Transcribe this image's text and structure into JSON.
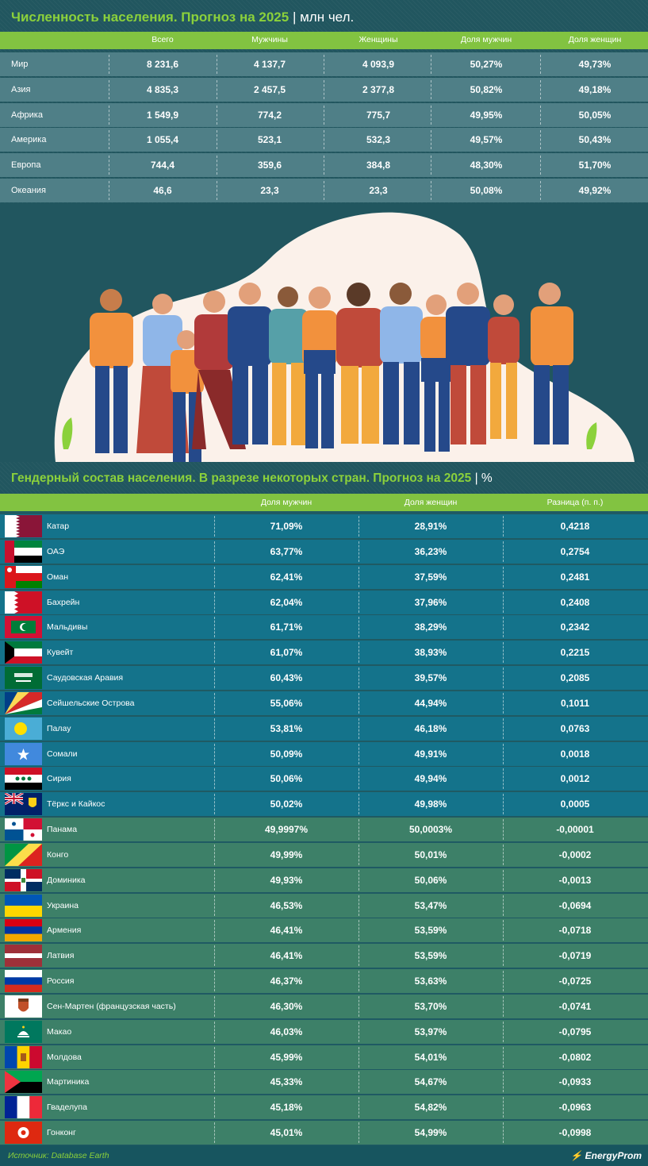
{
  "title1": {
    "main": "Численность населения. Прогноз на 2025",
    "sep": "|",
    "unit": "млн чел."
  },
  "table1": {
    "headers": [
      "Всего",
      "Мужчины",
      "Женщины",
      "Доля мужчин",
      "Доля женщин"
    ],
    "rows": [
      {
        "name": "Мир",
        "values": [
          "8 231,6",
          "4 137,7",
          "4 093,9",
          "50,27%",
          "49,73%"
        ]
      },
      {
        "name": "Азия",
        "values": [
          "4 835,3",
          "2 457,5",
          "2 377,8",
          "50,82%",
          "49,18%"
        ]
      },
      {
        "name": "Африка",
        "values": [
          "1 549,9",
          "774,2",
          "775,7",
          "49,95%",
          "50,05%"
        ]
      },
      {
        "name": "Америка",
        "values": [
          "1 055,4",
          "523,1",
          "532,3",
          "49,57%",
          "50,43%"
        ]
      },
      {
        "name": "Европа",
        "values": [
          "744,4",
          "359,6",
          "384,8",
          "48,30%",
          "51,70%"
        ]
      },
      {
        "name": "Океания",
        "values": [
          "46,6",
          "23,3",
          "23,3",
          "50,08%",
          "49,92%"
        ]
      }
    ]
  },
  "title2": {
    "main": "Гендерный состав населения. В разрезе некоторых стран. Прогноз на 2025",
    "sep": "|",
    "unit": "%"
  },
  "table2": {
    "headers": [
      "Доля мужчин",
      "Доля женщин",
      "Разница (п. п.)"
    ],
    "rows": [
      {
        "name": "Катар",
        "flag": "qatar-flag-icon",
        "tone": "blue",
        "values": [
          "71,09%",
          "28,91%",
          "0,4218"
        ]
      },
      {
        "name": "ОАЭ",
        "flag": "uae-flag-icon",
        "tone": "blue",
        "values": [
          "63,77%",
          "36,23%",
          "0,2754"
        ]
      },
      {
        "name": "Оман",
        "flag": "oman-flag-icon",
        "tone": "blue",
        "values": [
          "62,41%",
          "37,59%",
          "0,2481"
        ]
      },
      {
        "name": "Бахрейн",
        "flag": "bahrain-flag-icon",
        "tone": "blue",
        "values": [
          "62,04%",
          "37,96%",
          "0,2408"
        ]
      },
      {
        "name": "Мальдивы",
        "flag": "maldives-flag-icon",
        "tone": "blue",
        "values": [
          "61,71%",
          "38,29%",
          "0,2342"
        ]
      },
      {
        "name": "Кувейт",
        "flag": "kuwait-flag-icon",
        "tone": "blue",
        "values": [
          "61,07%",
          "38,93%",
          "0,2215"
        ]
      },
      {
        "name": "Саудовская Аравия",
        "flag": "saudi-arabia-flag-icon",
        "tone": "blue",
        "values": [
          "60,43%",
          "39,57%",
          "0,2085"
        ]
      },
      {
        "name": "Сейшельские Острова",
        "flag": "seychelles-flag-icon",
        "tone": "blue",
        "values": [
          "55,06%",
          "44,94%",
          "0,1011"
        ]
      },
      {
        "name": "Палау",
        "flag": "palau-flag-icon",
        "tone": "blue",
        "values": [
          "53,81%",
          "46,18%",
          "0,0763"
        ]
      },
      {
        "name": "Сомали",
        "flag": "somalia-flag-icon",
        "tone": "blue",
        "values": [
          "50,09%",
          "49,91%",
          "0,0018"
        ]
      },
      {
        "name": "Сирия",
        "flag": "syria-flag-icon",
        "tone": "blue",
        "values": [
          "50,06%",
          "49,94%",
          "0,0012"
        ]
      },
      {
        "name": "Тёркс и Кайкос",
        "flag": "turks-caicos-flag-icon",
        "tone": "blue",
        "values": [
          "50,02%",
          "49,98%",
          "0,0005"
        ]
      },
      {
        "name": "Панама",
        "flag": "panama-flag-icon",
        "tone": "green",
        "values": [
          "49,9997%",
          "50,0003%",
          "-0,00001"
        ]
      },
      {
        "name": "Конго",
        "flag": "congo-flag-icon",
        "tone": "green",
        "values": [
          "49,99%",
          "50,01%",
          "-0,0002"
        ]
      },
      {
        "name": "Доминика",
        "flag": "dominican-flag-icon",
        "tone": "green",
        "values": [
          "49,93%",
          "50,06%",
          "-0,0013"
        ]
      },
      {
        "name": "Украина",
        "flag": "ukraine-flag-icon",
        "tone": "green",
        "values": [
          "46,53%",
          "53,47%",
          "-0,0694"
        ]
      },
      {
        "name": "Армения",
        "flag": "armenia-flag-icon",
        "tone": "green",
        "values": [
          "46,41%",
          "53,59%",
          "-0,0718"
        ]
      },
      {
        "name": "Латвия",
        "flag": "latvia-flag-icon",
        "tone": "green",
        "values": [
          "46,41%",
          "53,59%",
          "-0,0719"
        ]
      },
      {
        "name": "Россия",
        "flag": "russia-flag-icon",
        "tone": "green",
        "values": [
          "46,37%",
          "53,63%",
          "-0,0725"
        ]
      },
      {
        "name": "Сен-Мартен (французская часть)",
        "flag": "saint-martin-flag-icon",
        "tone": "green",
        "values": [
          "46,30%",
          "53,70%",
          "-0,0741"
        ]
      },
      {
        "name": "Макао",
        "flag": "macau-flag-icon",
        "tone": "green",
        "values": [
          "46,03%",
          "53,97%",
          "-0,0795"
        ]
      },
      {
        "name": "Молдова",
        "flag": "moldova-flag-icon",
        "tone": "green",
        "values": [
          "45,99%",
          "54,01%",
          "-0,0802"
        ]
      },
      {
        "name": "Мартиника",
        "flag": "martinique-flag-icon",
        "tone": "green",
        "values": [
          "45,33%",
          "54,67%",
          "-0,0933"
        ]
      },
      {
        "name": "Гваделупа",
        "flag": "guadeloupe-flag-icon",
        "tone": "green",
        "values": [
          "45,18%",
          "54,82%",
          "-0,0963"
        ]
      },
      {
        "name": "Гонконг",
        "flag": "hong-kong-flag-icon",
        "tone": "green",
        "values": [
          "45,01%",
          "54,99%",
          "-0,0998"
        ]
      }
    ]
  },
  "footer": {
    "source": "Источник: Database Earth",
    "brand": "EnergyProm"
  },
  "colors": {
    "accent_green": "#82c341",
    "title_green": "#8bd13b",
    "row_blue": "#14738b",
    "row_green": "#3d8068",
    "table1_row": "#4f7f87"
  }
}
